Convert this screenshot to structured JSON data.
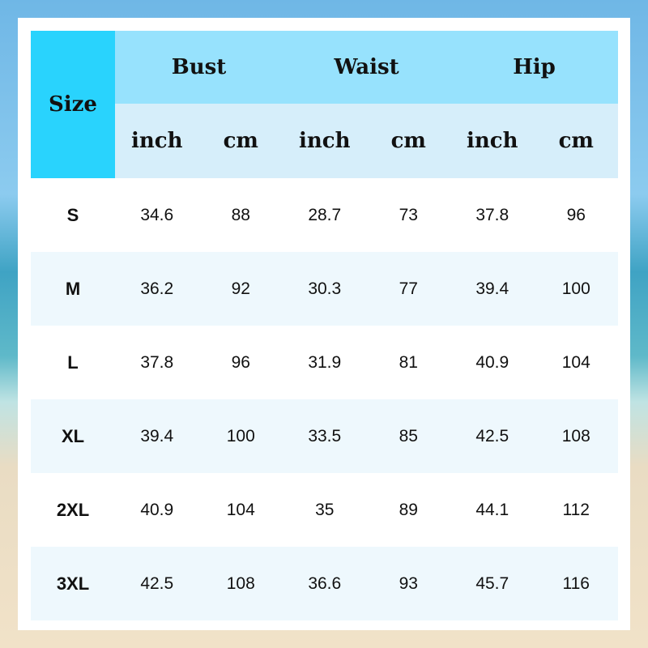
{
  "header": {
    "size": "Size",
    "groups": [
      "Bust",
      "Waist",
      "Hip"
    ],
    "units": [
      "inch",
      "cm",
      "inch",
      "cm",
      "inch",
      "cm"
    ]
  },
  "rows": [
    {
      "size": "S",
      "values": [
        "34.6",
        "88",
        "28.7",
        "73",
        "37.8",
        "96"
      ]
    },
    {
      "size": "M",
      "values": [
        "36.2",
        "92",
        "30.3",
        "77",
        "39.4",
        "100"
      ]
    },
    {
      "size": "L",
      "values": [
        "37.8",
        "96",
        "31.9",
        "81",
        "40.9",
        "104"
      ]
    },
    {
      "size": "XL",
      "values": [
        "39.4",
        "100",
        "33.5",
        "85",
        "42.5",
        "108"
      ]
    },
    {
      "size": "2XL",
      "values": [
        "40.9",
        "104",
        "35",
        "89",
        "44.1",
        "112"
      ]
    },
    {
      "size": "3XL",
      "values": [
        "42.5",
        "108",
        "36.6",
        "93",
        "45.7",
        "116"
      ]
    }
  ],
  "colors": {
    "size_header": "#29d3fd",
    "group_header": "#97e2fd",
    "unit_header": "#d6eefa",
    "alt_row": "#eef8fd"
  }
}
